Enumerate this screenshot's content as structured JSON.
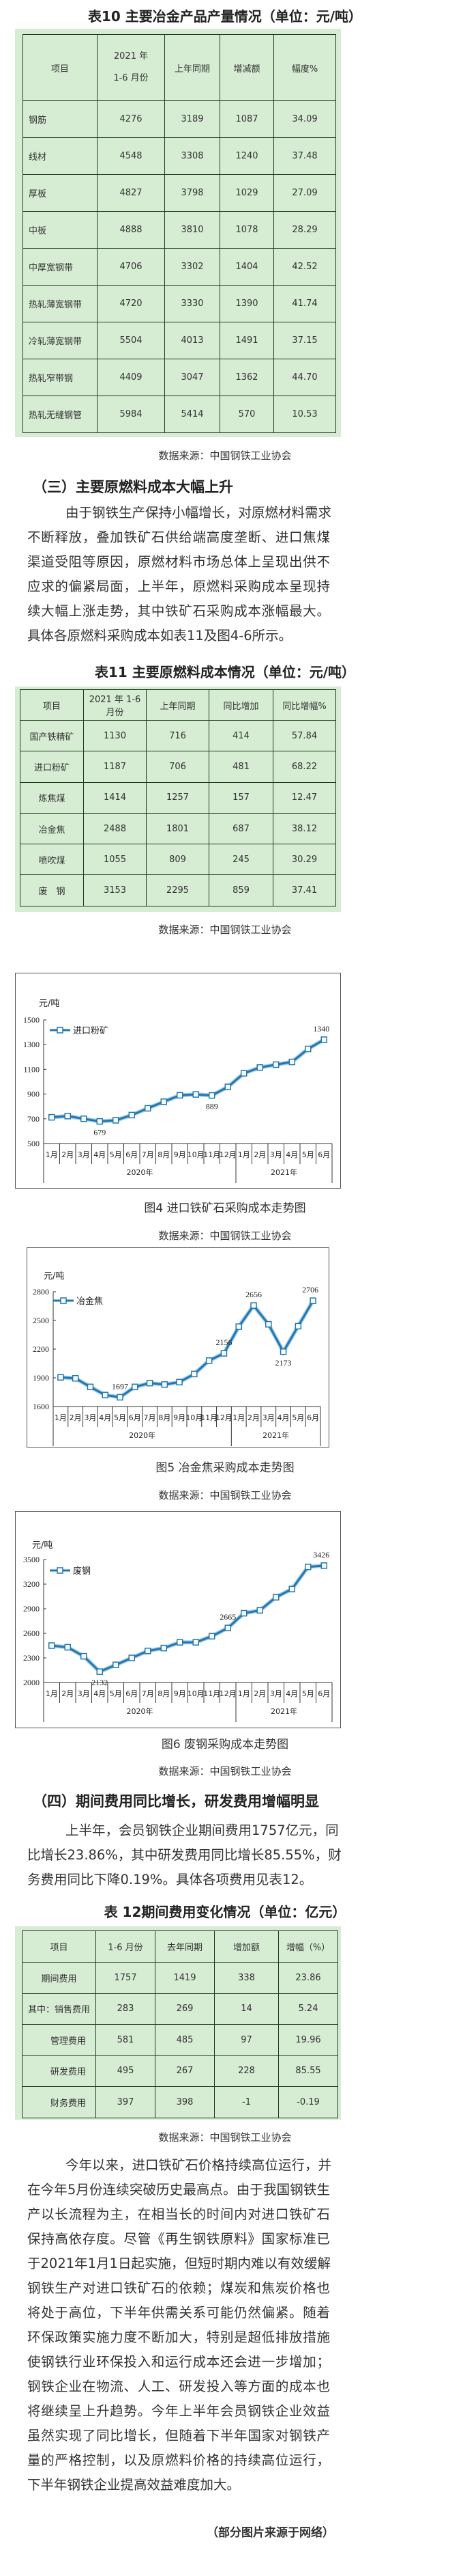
{
  "table10": {
    "title": "表10 主要冶金产品产量情况（单位：元/吨）",
    "headers": [
      "项目",
      "2021 年 1-6 月份",
      "上年同期",
      "增减额",
      "幅度%"
    ],
    "rows": [
      [
        "钢筋",
        "4276",
        "3189",
        "1087",
        "34.09"
      ],
      [
        "线材",
        "4548",
        "3308",
        "1240",
        "37.48"
      ],
      [
        "厚板",
        "4827",
        "3798",
        "1029",
        "27.09"
      ],
      [
        "中板",
        "4888",
        "3810",
        "1078",
        "28.29"
      ],
      [
        "中厚宽钢带",
        "4706",
        "3302",
        "1404",
        "42.52"
      ],
      [
        "热轧薄宽钢带",
        "4720",
        "3330",
        "1390",
        "41.74"
      ],
      [
        "冷轧薄宽钢带",
        "5504",
        "4013",
        "1491",
        "37.15"
      ],
      [
        "热轧窄带钢",
        "4409",
        "3047",
        "1362",
        "44.70"
      ],
      [
        "热轧无缝钢管",
        "5984",
        "5414",
        "570",
        "10.53"
      ]
    ],
    "source": "数据来源：中国钢铁工业协会"
  },
  "section3": {
    "heading": "（三）主要原燃料成本大幅上升",
    "lines": [
      "由于钢铁生产保持小幅增长，对原燃材料需求",
      "不断释放，叠加铁矿石供给端高度垄断、进口焦煤",
      "渠道受阻等原因，原燃材料市场总体上呈现出供不",
      "应求的偏紧局面，上半年，原燃料采购成本呈现持",
      "续大幅上涨走势，其中铁矿石采购成本涨幅最大。",
      "具体各原燃料采购成本如表11及图4-6所示。"
    ]
  },
  "table11": {
    "title": "表11 主要原燃料成本情况（单位：元/吨）",
    "headers": [
      "项目",
      "2021 年 1-6 月份",
      "上年同期",
      "同比增加",
      "同比增幅%"
    ],
    "rows": [
      [
        "国产铁精矿",
        "1130",
        "716",
        "414",
        "57.84"
      ],
      [
        "进口粉矿",
        "1187",
        "706",
        "481",
        "68.22"
      ],
      [
        "炼焦煤",
        "1414",
        "1257",
        "157",
        "12.47"
      ],
      [
        "冶金焦",
        "2488",
        "1801",
        "687",
        "38.12"
      ],
      [
        "喷吹煤",
        "1055",
        "809",
        "245",
        "30.29"
      ],
      [
        "废　钢",
        "3153",
        "2295",
        "859",
        "37.41"
      ]
    ],
    "source": "数据来源：中国钢铁工业协会"
  },
  "chart_data": [
    {
      "type": "line",
      "title": "图4 进口铁矿石采购成本走势图",
      "source": "数据来源：中国钢铁工业协会",
      "ylabel": "元/吨",
      "ylim": [
        500,
        1500
      ],
      "yticks": [
        500,
        700,
        900,
        1100,
        1300,
        1500
      ],
      "categories": [
        "1月",
        "2月",
        "3月",
        "4月",
        "5月",
        "6月",
        "7月",
        "8月",
        "9月",
        "10月",
        "11月",
        "12月",
        "1月",
        "2月",
        "3月",
        "4月",
        "5月",
        "6月"
      ],
      "groups": [
        {
          "label": "2020年",
          "count": 12
        },
        {
          "label": "2021年",
          "count": 6
        }
      ],
      "series": [
        {
          "name": "进口粉矿",
          "values": [
            712,
            722,
            700,
            679,
            688,
            730,
            785,
            838,
            890,
            897,
            889,
            958,
            1068,
            1115,
            1138,
            1160,
            1265,
            1340
          ]
        }
      ],
      "annotations": [
        {
          "index": 3,
          "text": "679",
          "pos": "below"
        },
        {
          "index": 10,
          "text": "889",
          "pos": "below"
        },
        {
          "index": 17,
          "text": "1340",
          "pos": "above"
        }
      ],
      "legend": "top-left",
      "color": "#1f77b4"
    },
    {
      "type": "line",
      "title": "图5 冶金焦采购成本走势图",
      "source": "数据来源：中国钢铁工业协会",
      "ylabel": "元/吨",
      "ylim": [
        1600,
        2800
      ],
      "yticks": [
        1600,
        1900,
        2200,
        2500,
        2800
      ],
      "categories": [
        "1月",
        "2月",
        "3月",
        "4月",
        "5月",
        "6月",
        "7月",
        "8月",
        "9月",
        "10月",
        "11月",
        "12月",
        "1月",
        "2月",
        "3月",
        "4月",
        "5月",
        "6月"
      ],
      "groups": [
        {
          "label": "2020年",
          "count": 12
        },
        {
          "label": "2021年",
          "count": 6
        }
      ],
      "series": [
        {
          "name": "冶金焦",
          "values": [
            1905,
            1895,
            1805,
            1720,
            1697,
            1805,
            1845,
            1830,
            1855,
            1940,
            2080,
            2156,
            2435,
            2656,
            2460,
            2173,
            2440,
            2706
          ]
        }
      ],
      "annotations": [
        {
          "index": 4,
          "text": "1697",
          "pos": "above"
        },
        {
          "index": 11,
          "text": "2156",
          "pos": "above"
        },
        {
          "index": 13,
          "text": "2656",
          "pos": "above"
        },
        {
          "index": 15,
          "text": "2173",
          "pos": "below"
        },
        {
          "index": 17,
          "text": "2706",
          "pos": "above"
        }
      ],
      "legend": "top-left",
      "color": "#1f77b4"
    },
    {
      "type": "line",
      "title": "图6  废钢采购成本走势图",
      "source": "数据来源：中国钢铁工业协会",
      "ylabel": "元/吨",
      "ylim": [
        2000,
        3500
      ],
      "yticks": [
        2000,
        2300,
        2600,
        2900,
        3200,
        3500
      ],
      "categories": [
        "1月",
        "2月",
        "3月",
        "4月",
        "5月",
        "6月",
        "7月",
        "8月",
        "9月",
        "10月",
        "11月",
        "12月",
        "1月",
        "2月",
        "3月",
        "4月",
        "5月",
        "6月"
      ],
      "groups": [
        {
          "label": "2020年",
          "count": 12
        },
        {
          "label": "2021年",
          "count": 6
        }
      ],
      "series": [
        {
          "name": "废钢",
          "values": [
            2450,
            2430,
            2320,
            2132,
            2215,
            2300,
            2385,
            2420,
            2490,
            2490,
            2565,
            2665,
            2845,
            2880,
            3040,
            3140,
            3410,
            3426
          ]
        }
      ],
      "annotations": [
        {
          "index": 3,
          "text": "2132",
          "pos": "below"
        },
        {
          "index": 11,
          "text": "2665",
          "pos": "above"
        },
        {
          "index": 17,
          "text": "3426",
          "pos": "above"
        }
      ],
      "legend": "top-left",
      "color": "#1f77b4"
    }
  ],
  "section4": {
    "heading": "（四）期间费用同比增长，研发费用增幅明显",
    "lines": [
      "上半年，会员钢铁企业期间费用1757亿元，同",
      "比增长23.86%，其中研发费用同比增长85.55%，财",
      "务费用同比下降0.19%。具体各项费用见表12。"
    ]
  },
  "table12": {
    "title": "表 12期间费用变化情况（单位：亿元）",
    "headers": [
      "项目",
      "1-6 月份",
      "去年同期",
      "增加额",
      "增幅（%）"
    ],
    "rows": [
      [
        "期间费用",
        "1757",
        "1419",
        "338",
        "23.86"
      ],
      [
        "其中：销售费用",
        "283",
        "269",
        "14",
        "5.24"
      ],
      [
        "管理费用",
        "581",
        "485",
        "97",
        "19.96"
      ],
      [
        "研发费用",
        "495",
        "267",
        "228",
        "85.55"
      ],
      [
        "财务费用",
        "397",
        "398",
        "-1",
        "-0.19"
      ]
    ],
    "source": "数据来源：中国钢铁工业协会"
  },
  "conclusion": {
    "lines": [
      "今年以来，进口铁矿石价格持续高位运行，并",
      "在今年5月份连续突破历史最高点。由于我国钢铁生",
      "产以长流程为主，在相当长的时间内对进口铁矿石",
      "保持高依存度。尽管《再生钢铁原料》国家标准已",
      "于2021年1月1日起实施，但短时期内难以有效缓解",
      "钢铁生产对进口铁矿石的依赖；煤炭和焦炭价格也",
      "将处于高位，下半年供需关系可能仍然偏紧。随着",
      "环保政策实施力度不断加大，特别是超低排放措施",
      "使钢铁行业环保投入和运行成本还会进一步增加；",
      "钢铁企业在物流、人工、研发投入等方面的成本也",
      "将继续呈上升趋势。今年上半年会员钢铁企业效益",
      "虽然实现了同比增长，但随着下半年国家对钢铁产",
      "量的严格控制，以及原燃料价格的持续高位运行，",
      "下半年钢铁企业提高效益难度加大。"
    ],
    "footer": "（部分图片来源于网络）"
  }
}
